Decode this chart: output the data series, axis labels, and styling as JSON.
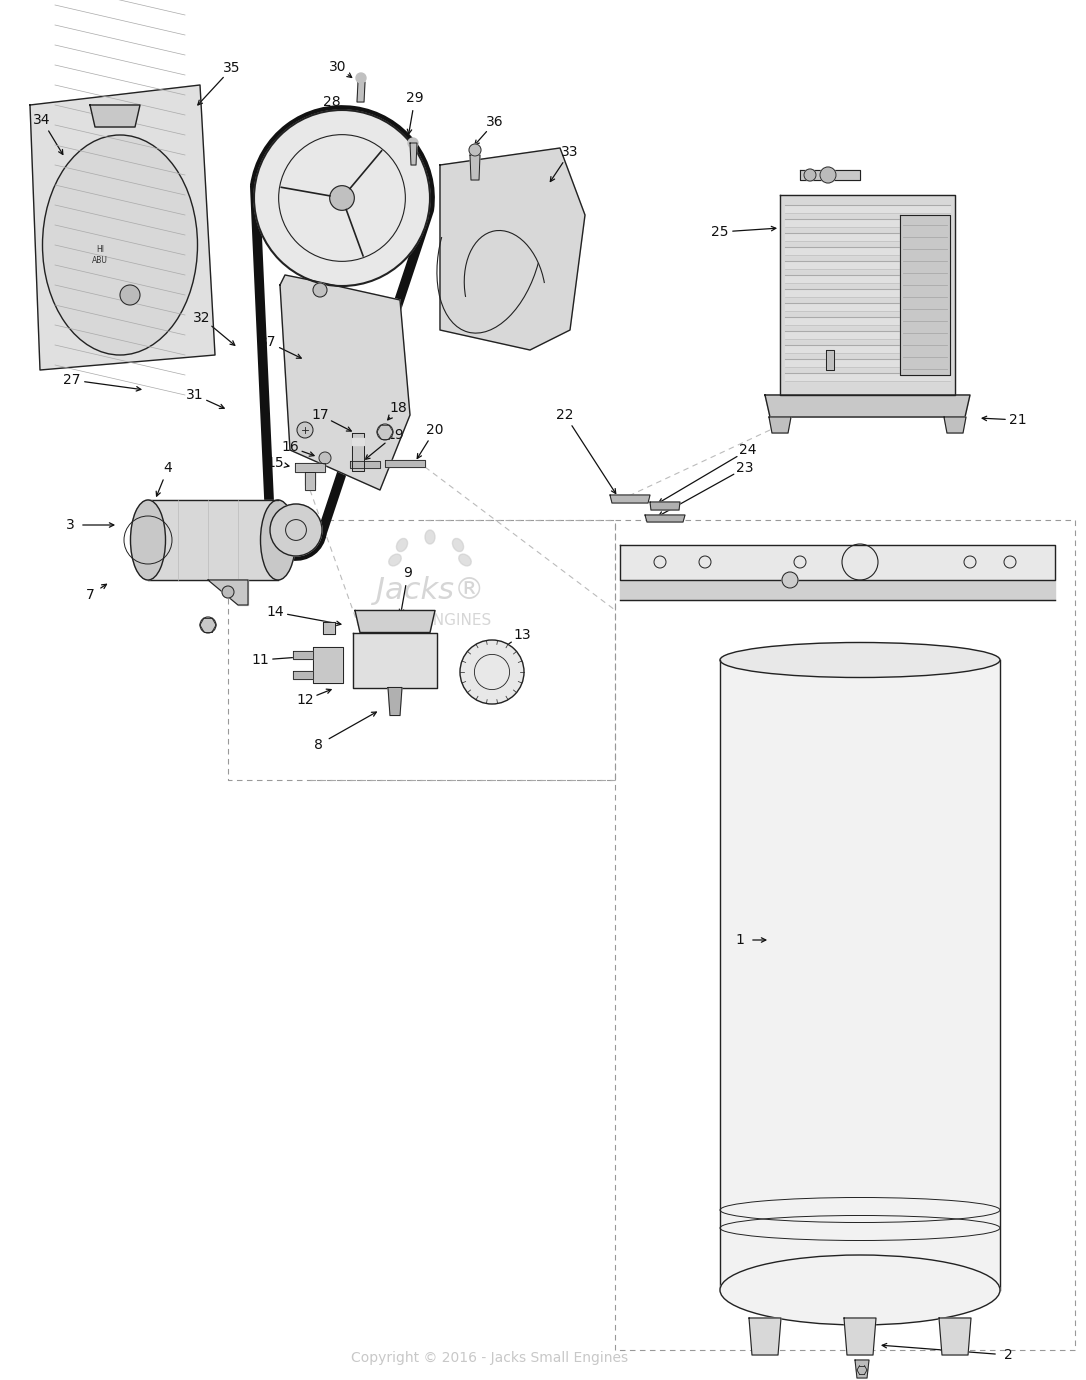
{
  "copyright_text": "Copyright © 2016 - Jacks Small Engines",
  "bg_color": "#ffffff",
  "line_color": "#222222",
  "label_color": "#111111",
  "watermark_color": "#cccccc",
  "fig_width": 10.86,
  "fig_height": 13.8
}
